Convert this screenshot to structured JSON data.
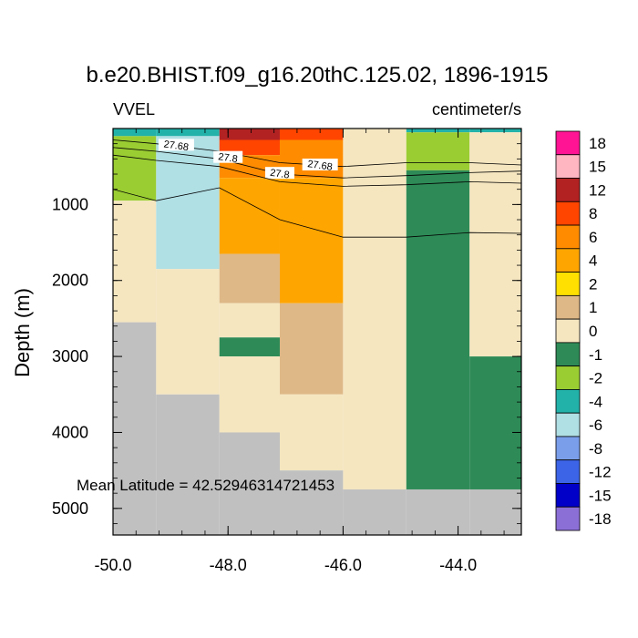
{
  "chart_data": {
    "type": "heatmap",
    "title": "b.e20.BHIST.f09_g16.20thC.125.02, 1896-1915",
    "left_label": "VVEL",
    "right_label": "centimeter/s",
    "ylabel": "Depth (m)",
    "xlabel": "",
    "xlim": [
      -50.0,
      -42.9
    ],
    "ylim": [
      5350,
      0
    ],
    "x_ticks": [
      "-50.0",
      "-48.0",
      "-46.0",
      "-44.0"
    ],
    "y_ticks": [
      "1000",
      "2000",
      "3000",
      "4000",
      "5000"
    ],
    "annotation": "Mean Latitude = 42.52946314721453",
    "missing_color": "#c0c0c0",
    "colorbar": {
      "labels": [
        "18",
        "15",
        "12",
        "8",
        "6",
        "4",
        "2",
        "1",
        "0",
        "-1",
        "-2",
        "-4",
        "-6",
        "-8",
        "-12",
        "-15",
        "-18"
      ],
      "colors": [
        "#8c6fd6",
        "#0000c8",
        "#3c64e6",
        "#7a9eea",
        "#b0dfe4",
        "#22b2aa",
        "#9acd32",
        "#2e8b57",
        "#f5e6c0",
        "#deb887",
        "#ffe000",
        "#ffa500",
        "#ff8c00",
        "#ff4500",
        "#b22222",
        "#ffb6c1",
        "#ff1493"
      ]
    },
    "cells": [
      {
        "x0": -50.0,
        "x1": -49.25,
        "y0": 0,
        "y1": 100,
        "value": -4
      },
      {
        "x0": -50.0,
        "x1": -49.25,
        "y0": 100,
        "y1": 950,
        "value": -2
      },
      {
        "x0": -50.0,
        "x1": -49.25,
        "y0": 950,
        "y1": 2550,
        "value": 0
      },
      {
        "x0": -50.0,
        "x1": -49.25,
        "y0": 2550,
        "y1": 5350,
        "value": null
      },
      {
        "x0": -49.25,
        "x1": -48.15,
        "y0": 0,
        "y1": 100,
        "value": -4
      },
      {
        "x0": -49.25,
        "x1": -48.15,
        "y0": 100,
        "y1": 1850,
        "value": -6
      },
      {
        "x0": -49.25,
        "x1": -48.15,
        "y0": 1850,
        "y1": 3500,
        "value": 0
      },
      {
        "x0": -49.25,
        "x1": -48.15,
        "y0": 3500,
        "y1": 5350,
        "value": null
      },
      {
        "x0": -48.15,
        "x1": -47.1,
        "y0": 0,
        "y1": 150,
        "value": 12
      },
      {
        "x0": -48.15,
        "x1": -47.1,
        "y0": 150,
        "y1": 350,
        "value": 8
      },
      {
        "x0": -48.15,
        "x1": -47.1,
        "y0": 350,
        "y1": 650,
        "value": 6
      },
      {
        "x0": -48.15,
        "x1": -47.1,
        "y0": 650,
        "y1": 1650,
        "value": 4
      },
      {
        "x0": -48.15,
        "x1": -47.1,
        "y0": 1650,
        "y1": 2300,
        "value": 1
      },
      {
        "x0": -48.15,
        "x1": -47.1,
        "y0": 2300,
        "y1": 2750,
        "value": 0
      },
      {
        "x0": -48.15,
        "x1": -47.1,
        "y0": 2750,
        "y1": 3000,
        "value": -1
      },
      {
        "x0": -48.15,
        "x1": -47.1,
        "y0": 3000,
        "y1": 4000,
        "value": 0
      },
      {
        "x0": -48.15,
        "x1": -47.1,
        "y0": 4000,
        "y1": 5350,
        "value": null
      },
      {
        "x0": -47.1,
        "x1": -46.0,
        "y0": 0,
        "y1": 150,
        "value": 8
      },
      {
        "x0": -47.1,
        "x1": -46.0,
        "y0": 150,
        "y1": 650,
        "value": 6
      },
      {
        "x0": -47.1,
        "x1": -46.0,
        "y0": 650,
        "y1": 2300,
        "value": 4
      },
      {
        "x0": -47.1,
        "x1": -46.0,
        "y0": 2300,
        "y1": 3500,
        "value": 1
      },
      {
        "x0": -47.1,
        "x1": -46.0,
        "y0": 3500,
        "y1": 4500,
        "value": 0
      },
      {
        "x0": -47.1,
        "x1": -46.0,
        "y0": 4500,
        "y1": 5350,
        "value": null
      },
      {
        "x0": -46.0,
        "x1": -44.9,
        "y0": 0,
        "y1": 4750,
        "value": 0
      },
      {
        "x0": -46.0,
        "x1": -44.9,
        "y0": 4750,
        "y1": 5350,
        "value": null
      },
      {
        "x0": -44.9,
        "x1": -43.8,
        "y0": 0,
        "y1": 50,
        "value": -4
      },
      {
        "x0": -44.9,
        "x1": -43.8,
        "y0": 50,
        "y1": 550,
        "value": -2
      },
      {
        "x0": -44.9,
        "x1": -43.8,
        "y0": 550,
        "y1": 4750,
        "value": -1
      },
      {
        "x0": -44.9,
        "x1": -43.8,
        "y0": 4750,
        "y1": 5350,
        "value": null
      },
      {
        "x0": -43.8,
        "x1": -42.9,
        "y0": 0,
        "y1": 50,
        "value": -4
      },
      {
        "x0": -43.8,
        "x1": -42.9,
        "y0": 50,
        "y1": 3000,
        "value": 0
      },
      {
        "x0": -43.8,
        "x1": -42.9,
        "y0": 3000,
        "y1": 4750,
        "value": -1
      },
      {
        "x0": -43.8,
        "x1": -42.9,
        "y0": 4750,
        "y1": 5350,
        "value": null
      }
    ],
    "contours": [
      {
        "value": "27.68",
        "points": [
          [
            -50.0,
            150
          ],
          [
            -49.25,
            200
          ],
          [
            -48.15,
            300
          ],
          [
            -47.1,
            450
          ],
          [
            -46.0,
            500
          ],
          [
            -44.9,
            450
          ],
          [
            -43.8,
            450
          ],
          [
            -42.9,
            480
          ]
        ],
        "label_at": [
          [
            -48.9,
            220
          ],
          [
            -46.4,
            480
          ]
        ]
      },
      {
        "value": "27.8",
        "points": [
          [
            -50.0,
            250
          ],
          [
            -49.25,
            300
          ],
          [
            -48.15,
            400
          ],
          [
            -47.1,
            600
          ],
          [
            -46.0,
            650
          ],
          [
            -44.9,
            620
          ],
          [
            -43.8,
            580
          ],
          [
            -42.9,
            560
          ]
        ],
        "label_at": [
          [
            -48.0,
            380
          ],
          [
            -47.1,
            590
          ]
        ]
      },
      {
        "value": "",
        "points": [
          [
            -50.0,
            800
          ],
          [
            -49.25,
            950
          ],
          [
            -48.15,
            780
          ],
          [
            -47.1,
            1200
          ],
          [
            -46.0,
            1430
          ],
          [
            -44.9,
            1430
          ],
          [
            -43.8,
            1370
          ],
          [
            -42.9,
            1380
          ]
        ],
        "label_at": []
      },
      {
        "value": "",
        "points": [
          [
            -50.0,
            350
          ],
          [
            -49.25,
            420
          ],
          [
            -48.15,
            500
          ],
          [
            -47.1,
            700
          ],
          [
            -46.0,
            760
          ],
          [
            -44.9,
            740
          ],
          [
            -43.8,
            700
          ],
          [
            -42.9,
            720
          ]
        ],
        "label_at": []
      }
    ]
  }
}
